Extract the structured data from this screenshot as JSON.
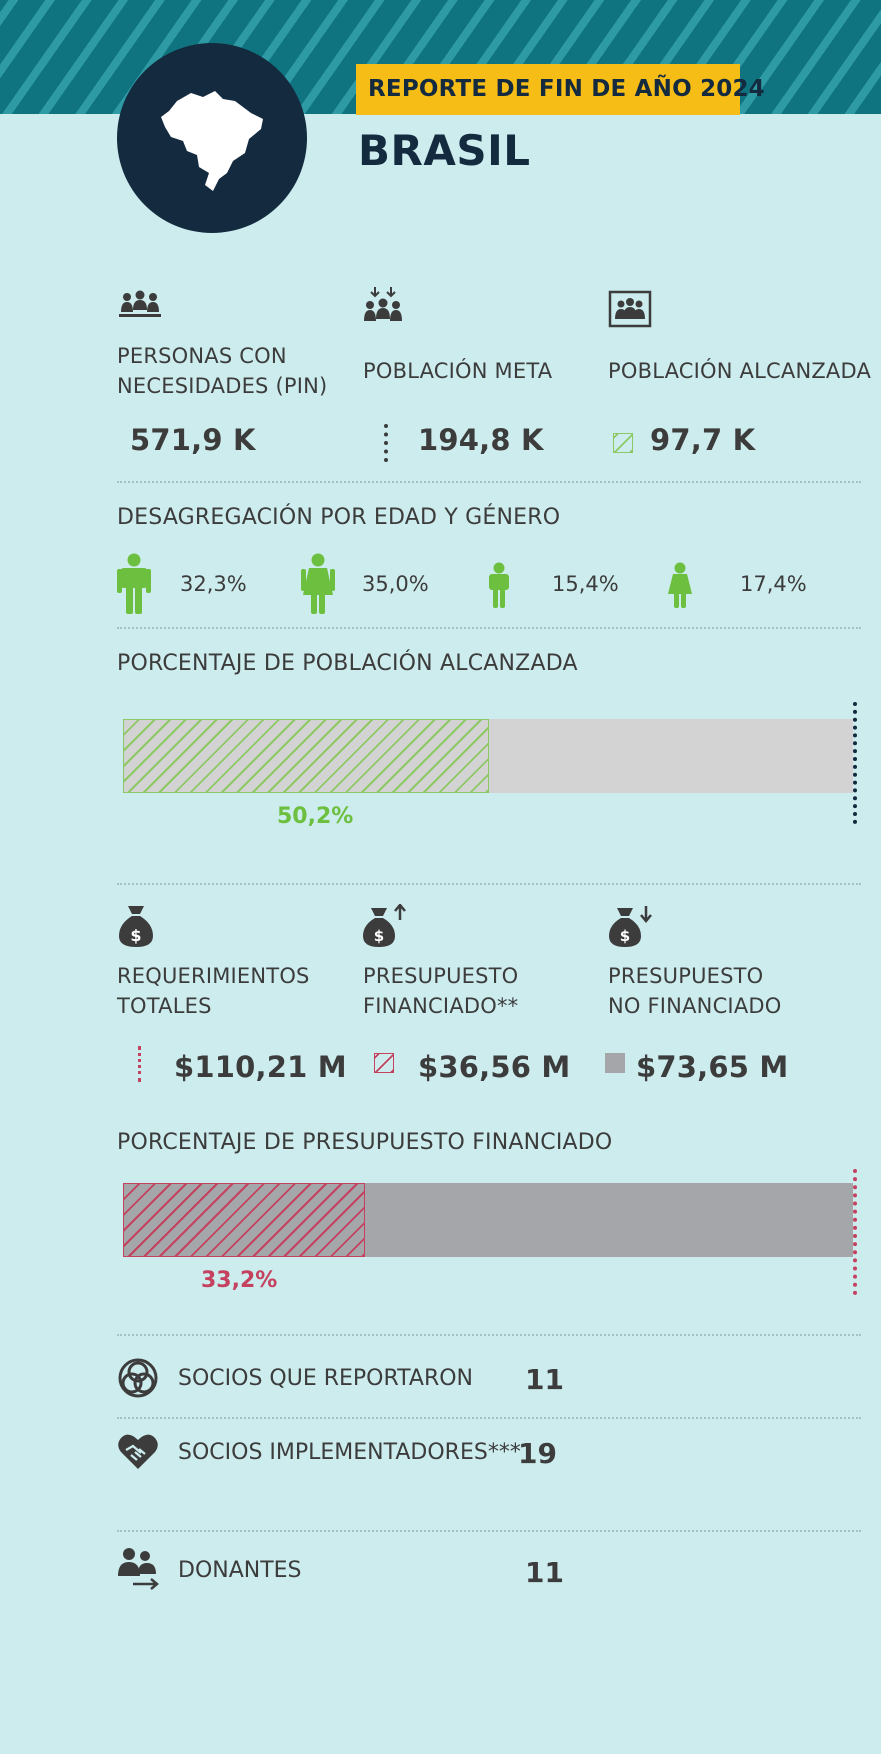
{
  "header": {
    "report_tag": "REPORTE DE FIN DE AÑO 2024",
    "country": "BRASIL"
  },
  "population": {
    "pin": {
      "label_line1": "PERSONAS CON",
      "label_line2": "NECESIDADES (PIN)",
      "value": "571,9 K",
      "icon": "people-group-icon"
    },
    "target": {
      "label": "POBLACIÓN META",
      "value": "194,8 K",
      "icon": "target-people-icon"
    },
    "reached": {
      "label": "POBLACIÓN ALCANZADA",
      "value": "97,7 K",
      "icon": "reached-people-icon"
    }
  },
  "demographics": {
    "title": "DESAGREGACIÓN POR EDAD Y GÉNERO",
    "items": [
      {
        "icon": "adult-male-icon",
        "value": "32,3%"
      },
      {
        "icon": "adult-female-icon",
        "value": "35,0%"
      },
      {
        "icon": "child-male-icon",
        "value": "15,4%"
      },
      {
        "icon": "child-female-icon",
        "value": "17,4%"
      }
    ]
  },
  "reach_bar": {
    "title": "PORCENTAJE DE POBLACIÓN ALCANZADA",
    "percent_label": "50,2%",
    "fraction": 0.502
  },
  "funding": {
    "total": {
      "label_line1": "REQUERIMIENTOS",
      "label_line2": "TOTALES",
      "value": "$110,21 M",
      "icon": "money-bag-icon"
    },
    "funded": {
      "label_line1": "PRESUPUESTO",
      "label_line2": "FINANCIADO**",
      "value": "$36,56 M",
      "icon": "money-bag-up-icon"
    },
    "unfunded": {
      "label_line1": "PRESUPUESTO",
      "label_line2": "NO FINANCIADO",
      "value": "$73,65 M",
      "icon": "money-bag-down-icon"
    }
  },
  "funding_bar": {
    "title": "PORCENTAJE DE PRESUPUESTO FINANCIADO",
    "percent_label": "33,2%",
    "fraction": 0.332
  },
  "partners": [
    {
      "icon": "interlinked-circles-icon",
      "label": "SOCIOS QUE REPORTARON",
      "value": "11"
    },
    {
      "icon": "handshake-heart-icon",
      "label": "SOCIOS IMPLEMENTADORES***",
      "value": "19"
    },
    {
      "icon": "donors-icon",
      "label": "DONANTES",
      "value": "11"
    }
  ],
  "colors": {
    "teal": "#0f7480",
    "navy": "#142a3f",
    "yellow": "#f6bd17",
    "green": "#6cbf3f",
    "crimson": "#c4415f",
    "gray_bar": "#d3d3d3",
    "dark_gray_bar": "#a5a6a9"
  }
}
